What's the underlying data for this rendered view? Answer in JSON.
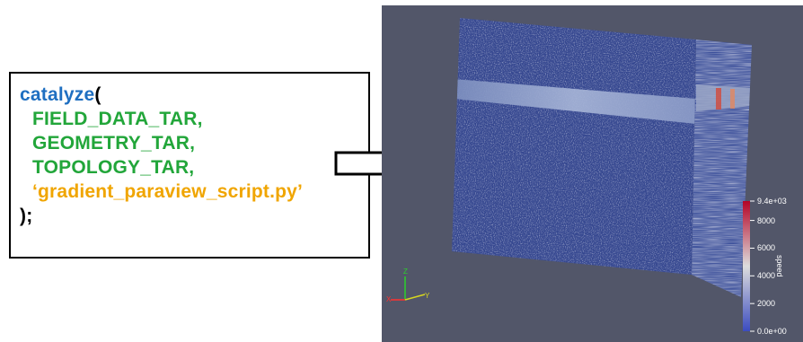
{
  "code": {
    "func": "catalyze",
    "open_paren": "(",
    "args": [
      "FIELD_DATA_TAR,",
      "GEOMETRY_TAR,",
      "TOPOLOGY_TAR,"
    ],
    "script_arg": "‘gradient_paraview_script.py’",
    "close": ");",
    "colors": {
      "func": "#1f6fc1",
      "args": "#22a63a",
      "script": "#f0a500",
      "plain": "#000000"
    }
  },
  "viewport": {
    "background": "#525669",
    "colorbar": {
      "title": "speed",
      "ticks": [
        "9.4e+03",
        "8000",
        "6000",
        "4000",
        "2000",
        "0.0e+00"
      ],
      "tick_values": [
        9400,
        8000,
        6000,
        4000,
        2000,
        0
      ],
      "range": [
        0,
        9400
      ],
      "colors": {
        "low": "#3b4cc0",
        "mid": "#dddddd",
        "high": "#b40426"
      }
    },
    "axes": {
      "x": "X",
      "y": "Y",
      "z": "Z"
    }
  }
}
